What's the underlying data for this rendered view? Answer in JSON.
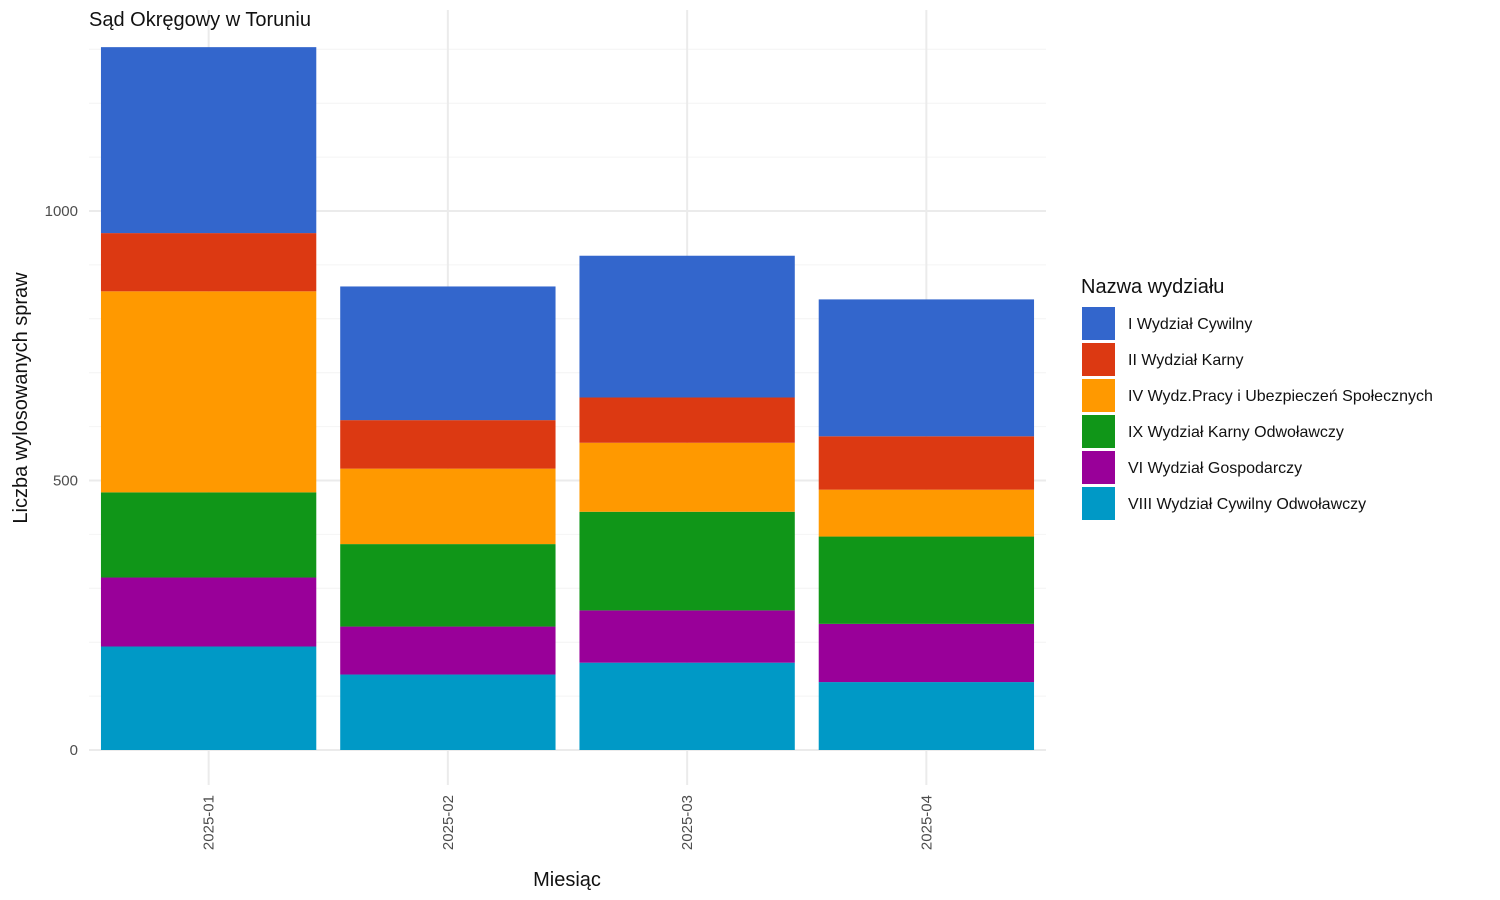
{
  "chart_data": {
    "type": "bar",
    "stacked": true,
    "title": "Sąd Okręgowy w Toruniu",
    "xlabel": "Miesiąc",
    "ylabel": "Liczba wylosowanych spraw",
    "categories": [
      "2025-01",
      "2025-02",
      "2025-03",
      "2025-04"
    ],
    "y_ticks": [
      0,
      500,
      1000
    ],
    "ylim": [
      0,
      1300
    ],
    "grid": true,
    "legend": {
      "title": "Nazwa wydziału",
      "position": "right"
    },
    "series": [
      {
        "name": "VIII Wydział Cywilny Odwoławczy",
        "color": "#0099c6",
        "values": [
          192,
          140,
          162,
          126
        ]
      },
      {
        "name": "VI Wydział Gospodarczy",
        "color": "#990099",
        "values": [
          128,
          89,
          97,
          108
        ]
      },
      {
        "name": "IX Wydział Karny Odwoławczy",
        "color": "#109618",
        "values": [
          158,
          153,
          183,
          162
        ]
      },
      {
        "name": "IV Wydz.Pracy i Ubezpieczeń Społecznych",
        "color": "#ff9900",
        "values": [
          373,
          140,
          128,
          87
        ]
      },
      {
        "name": "II Wydział Karny",
        "color": "#dc3912",
        "values": [
          108,
          90,
          84,
          99
        ]
      },
      {
        "name": "I Wydział Cywilny",
        "color": "#3366cc",
        "values": [
          345,
          248,
          263,
          254
        ]
      }
    ],
    "legend_order": [
      "I Wydział Cywilny",
      "II Wydział Karny",
      "IV Wydz.Pracy i Ubezpieczeń Społecznych",
      "IX Wydział Karny Odwoławczy",
      "VI Wydział Gospodarczy",
      "VIII Wydział Cywilny Odwoławczy"
    ]
  }
}
